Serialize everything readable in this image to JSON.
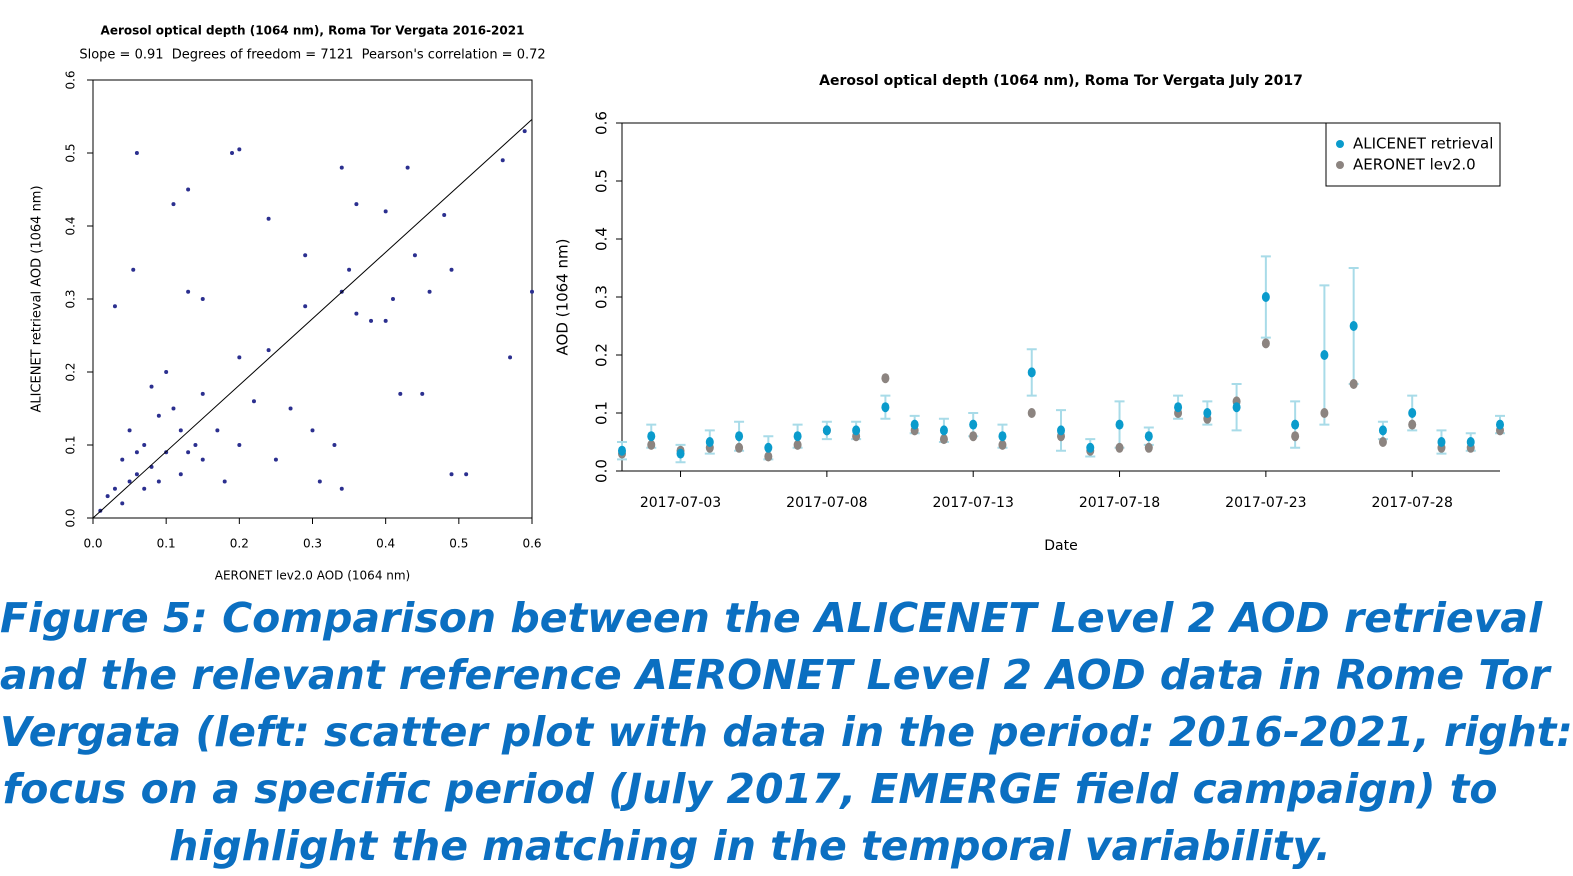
{
  "chart_data": [
    {
      "type": "scatter",
      "title": "Aerosol optical depth (1064 nm), Roma Tor Vergata 2016-2021",
      "subtitle": "Slope = 0.91  Degrees of freedom = 7121  Pearson's correlation = 0.72",
      "x_label": "AERONET lev2.0 AOD (1064 nm)",
      "y_label": "ALICENET retrieval AOD (1064 nm)",
      "color": "#2b2f8f",
      "x": [
        0.06,
        0.19,
        0.2,
        0.34,
        0.43,
        0.56,
        0.59,
        0.11,
        0.13,
        0.36,
        0.4,
        0.48,
        0.24,
        0.055,
        0.29,
        0.35,
        0.44,
        0.49,
        0.6,
        0.03,
        0.13,
        0.15,
        0.29,
        0.34,
        0.41,
        0.46,
        0.36,
        0.38,
        0.4,
        0.57,
        0.42,
        0.45,
        0.49,
        0.51,
        0.24,
        0.2,
        0.1,
        0.08,
        0.15,
        0.22,
        0.27,
        0.3,
        0.33,
        0.25,
        0.18,
        0.34,
        0.31,
        0.05,
        0.07,
        0.09,
        0.12,
        0.04,
        0.06,
        0.03,
        0.02,
        0.05,
        0.08,
        0.1,
        0.14,
        0.17,
        0.2,
        0.12,
        0.15,
        0.07,
        0.04,
        0.01,
        0.09,
        0.11,
        0.13,
        0.06
      ],
      "values": [
        0.5,
        0.5,
        0.505,
        0.48,
        0.48,
        0.49,
        0.53,
        0.43,
        0.45,
        0.43,
        0.42,
        0.415,
        0.41,
        0.34,
        0.36,
        0.34,
        0.36,
        0.34,
        0.31,
        0.29,
        0.31,
        0.3,
        0.29,
        0.31,
        0.3,
        0.31,
        0.28,
        0.27,
        0.27,
        0.22,
        0.17,
        0.17,
        0.06,
        0.06,
        0.23,
        0.22,
        0.2,
        0.18,
        0.17,
        0.16,
        0.15,
        0.12,
        0.1,
        0.08,
        0.05,
        0.04,
        0.05,
        0.12,
        0.1,
        0.14,
        0.12,
        0.08,
        0.06,
        0.04,
        0.03,
        0.05,
        0.07,
        0.09,
        0.1,
        0.12,
        0.1,
        0.06,
        0.08,
        0.04,
        0.02,
        0.01,
        0.05,
        0.15,
        0.09,
        0.09
      ],
      "fit_line": {
        "x": [
          0,
          0.6
        ],
        "values": [
          0,
          0.546
        ]
      },
      "xlim": [
        0,
        0.6
      ],
      "ylim": [
        0,
        0.6
      ],
      "xticks": [
        {
          "value": 0,
          "label": "0.0"
        },
        0.1,
        0.2,
        0.3,
        0.4,
        0.5,
        0.6
      ],
      "yticks": [
        {
          "value": 0,
          "label": "0.0"
        },
        0.1,
        0.2,
        0.3,
        0.4,
        0.5,
        0.6
      ]
    },
    {
      "type": "line",
      "title": "Aerosol optical depth (1064 nm), Roma Tor Vergata July 2017",
      "x_label": "Date",
      "y_label": "AOD (1064 nm)",
      "legend": "top-right",
      "x": [
        "2017-07-01",
        "2017-07-02",
        "2017-07-03",
        "2017-07-04",
        "2017-07-05",
        "2017-07-06",
        "2017-07-07",
        "2017-07-08",
        "2017-07-09",
        "2017-07-10",
        "2017-07-11",
        "2017-07-12",
        "2017-07-13",
        "2017-07-14",
        "2017-07-15",
        "2017-07-16",
        "2017-07-17",
        "2017-07-18",
        "2017-07-19",
        "2017-07-20",
        "2017-07-21",
        "2017-07-22",
        "2017-07-23",
        "2017-07-24",
        "2017-07-25",
        "2017-07-26",
        "2017-07-27",
        "2017-07-28",
        "2017-07-29",
        "2017-07-30",
        "2017-07-31"
      ],
      "series": [
        {
          "name": "ALICENET retrieval",
          "color": "#0a9bcc",
          "values": [
            0.035,
            0.06,
            0.03,
            0.05,
            0.06,
            0.04,
            0.06,
            0.07,
            0.07,
            0.11,
            0.08,
            0.07,
            0.08,
            0.06,
            0.17,
            0.07,
            0.04,
            0.08,
            0.06,
            0.11,
            0.1,
            0.11,
            0.3,
            0.08,
            0.2,
            0.25,
            0.07,
            0.1,
            0.05,
            0.05,
            0.08
          ],
          "errors": [
            0.015,
            0.02,
            0.015,
            0.02,
            0.025,
            0.02,
            0.02,
            0.015,
            0.015,
            0.02,
            0.015,
            0.02,
            0.02,
            0.02,
            0.04,
            0.035,
            0.015,
            0.04,
            0.015,
            0.02,
            0.02,
            0.04,
            0.07,
            0.04,
            0.12,
            0.1,
            0.015,
            0.03,
            0.02,
            0.015,
            0.015
          ]
        },
        {
          "name": "AERONET lev2.0",
          "color": "#8c8480",
          "values": [
            0.03,
            0.045,
            0.035,
            0.04,
            0.04,
            0.025,
            0.045,
            0.07,
            0.06,
            0.16,
            0.07,
            0.055,
            0.06,
            0.045,
            0.1,
            0.06,
            0.035,
            0.04,
            0.04,
            0.1,
            0.09,
            0.12,
            0.22,
            0.06,
            0.1,
            0.15,
            0.05,
            0.08,
            0.04,
            0.04,
            0.07
          ]
        }
      ],
      "xlim": [
        "2017-07-01",
        "2017-07-31"
      ],
      "ylim": [
        0,
        0.6
      ],
      "xticks": [
        "2017-07-03",
        "2017-07-08",
        "2017-07-13",
        "2017-07-18",
        "2017-07-23",
        "2017-07-28"
      ],
      "yticks": [
        {
          "value": 0,
          "label": "0.0"
        },
        0.1,
        0.2,
        0.3,
        0.4,
        0.5,
        0.6
      ]
    }
  ],
  "caption": [
    "Figure 5: Comparison between the ALICENET Level 2 AOD retrieval",
    "and the relevant reference AERONET Level 2 AOD data in Rome Tor",
    "Vergata (left: scatter plot with data in the period: 2016-2021, right:",
    "focus on a specific period (July 2017, EMERGE field campaign) to",
    "highlight the matching in the temporal variability."
  ]
}
